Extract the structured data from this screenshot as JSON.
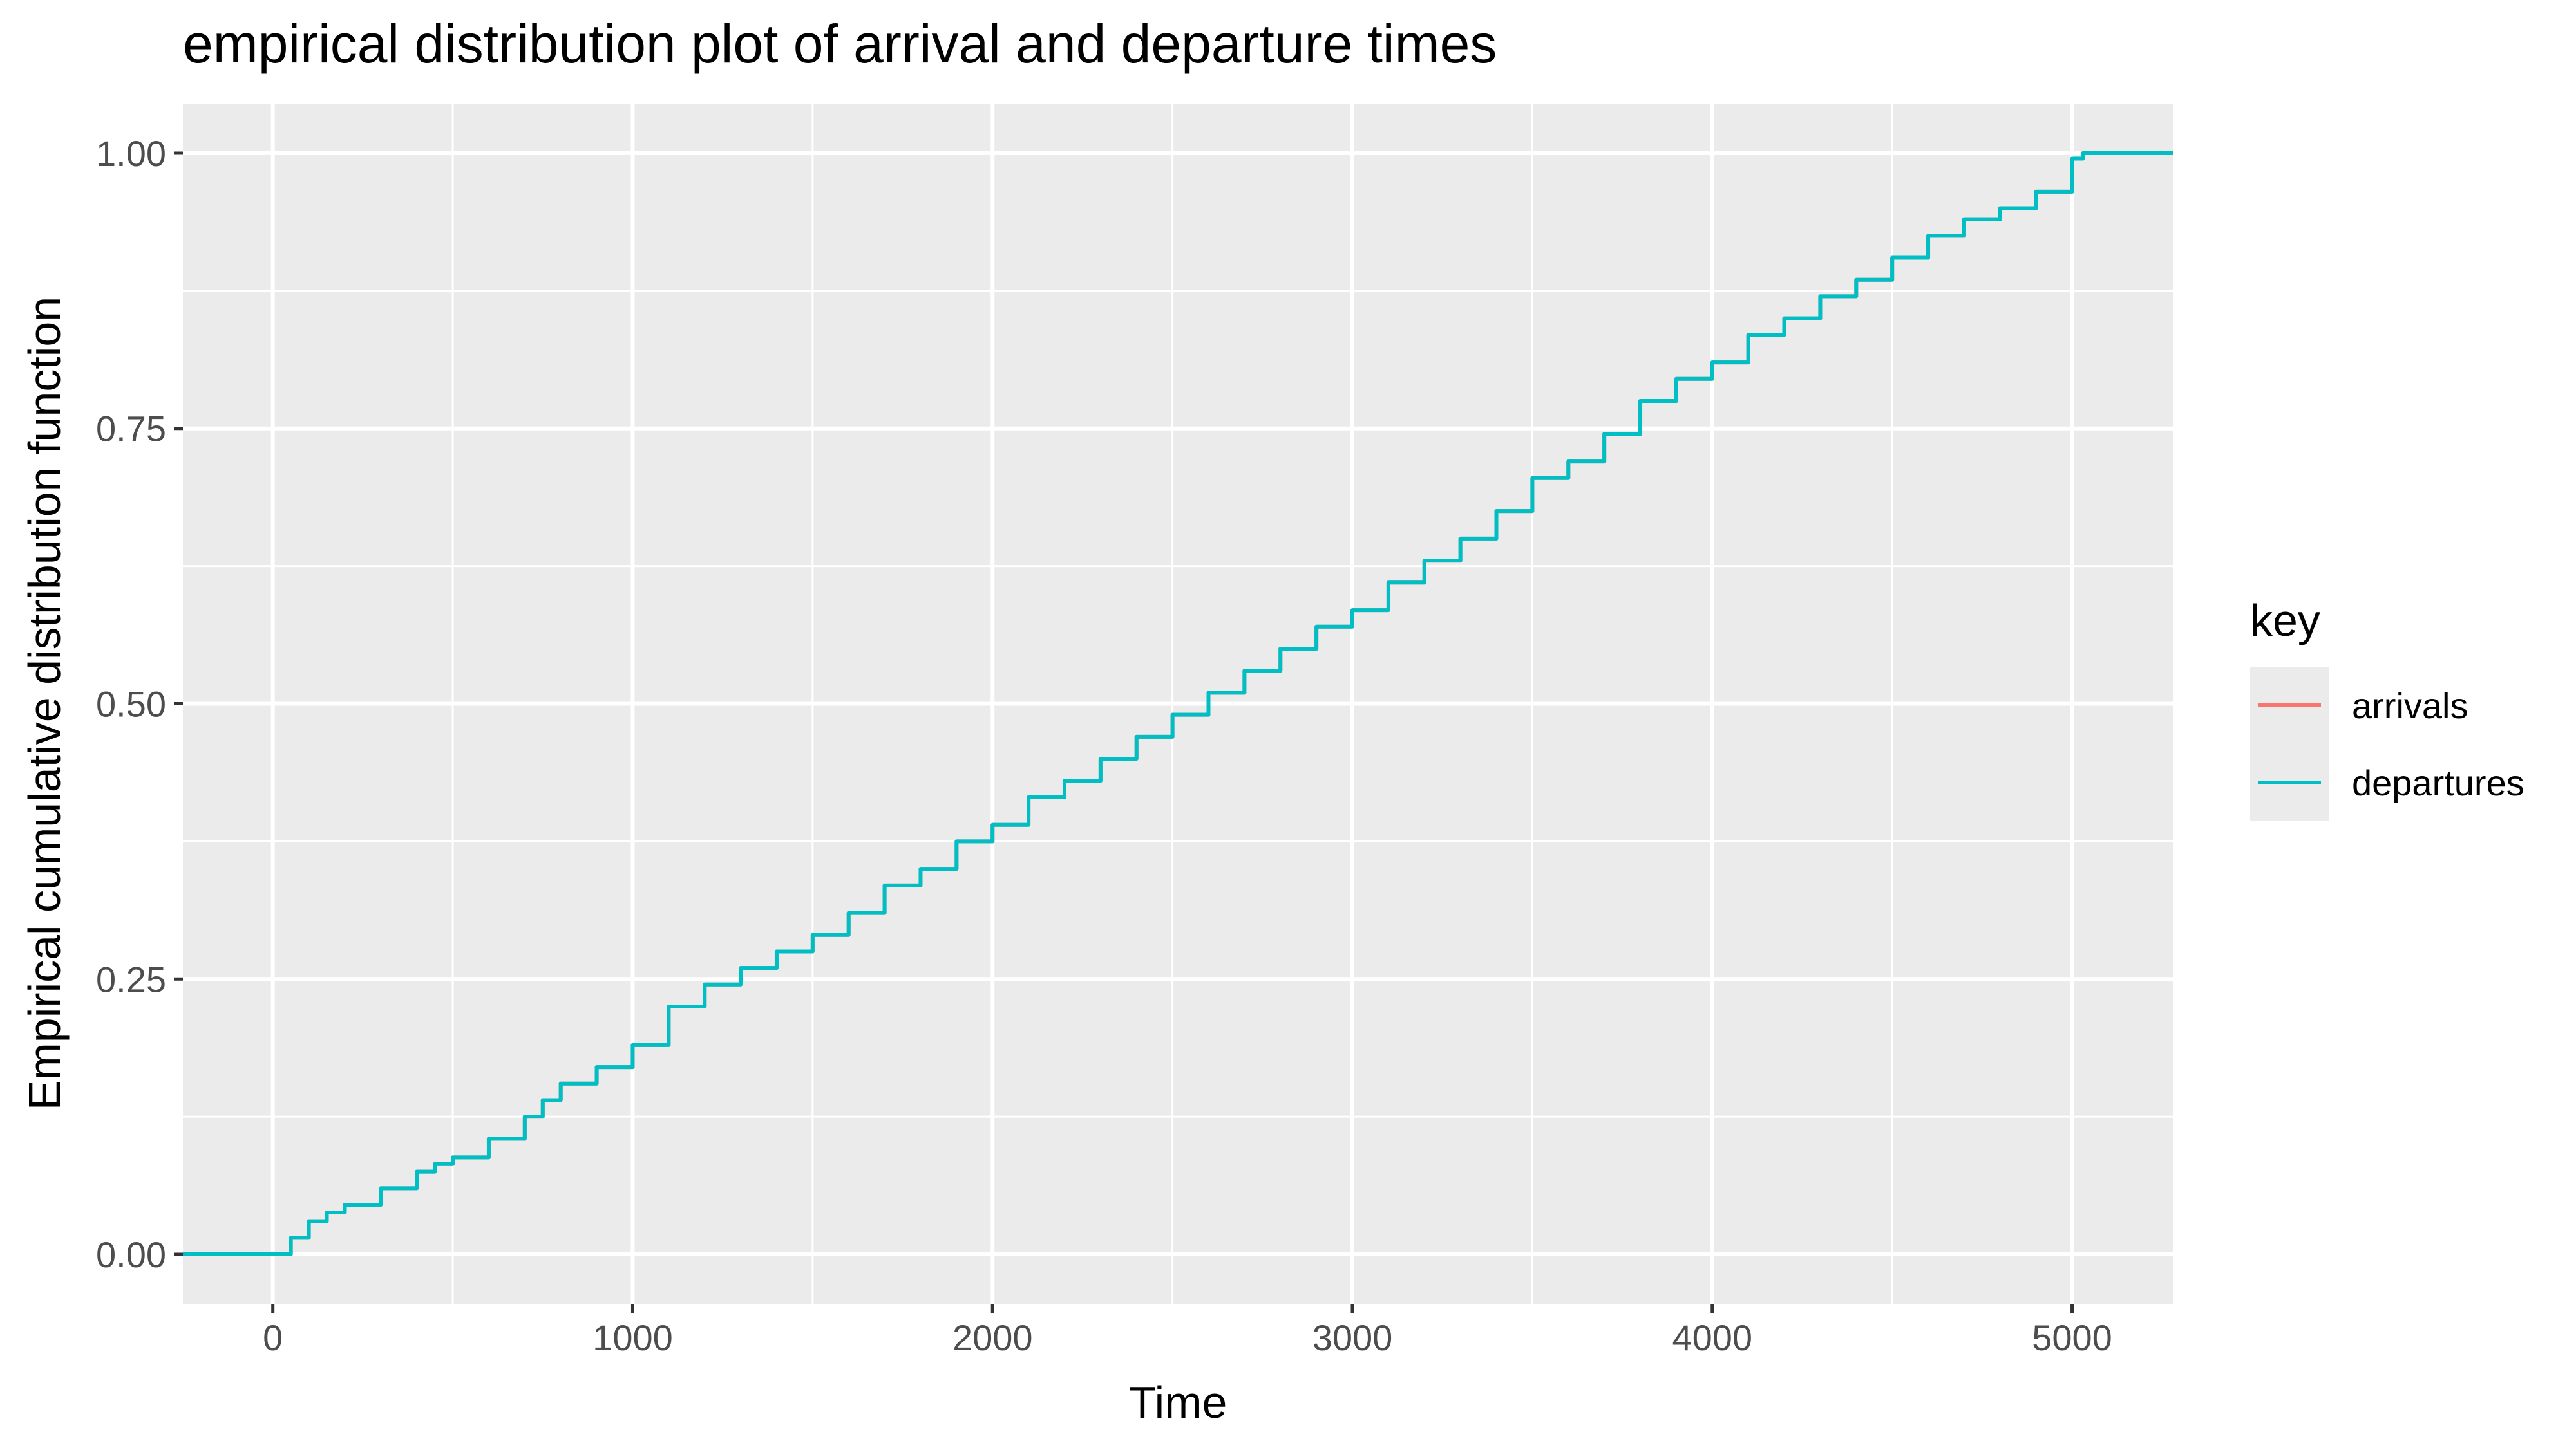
{
  "chart_data": {
    "type": "line",
    "title": "empirical distribution plot of arrival and departure times",
    "xlabel": "Time",
    "ylabel": "Empirical cumulative distribution function",
    "xlim": [
      -250,
      5280
    ],
    "ylim": [
      -0.045,
      1.045
    ],
    "x_ticks": [
      0,
      1000,
      2000,
      3000,
      4000,
      5000
    ],
    "x_tick_labels": [
      "0",
      "1000",
      "2000",
      "3000",
      "4000",
      "5000"
    ],
    "y_ticks": [
      0,
      0.25,
      0.5,
      0.75,
      1
    ],
    "y_tick_labels": [
      "0.00",
      "0.25",
      "0.50",
      "0.75",
      "1.00"
    ],
    "grid": true,
    "legend": {
      "title": "key",
      "placement": "right",
      "entries": [
        "arrivals",
        "departures"
      ]
    },
    "series": [
      {
        "name": "arrivals",
        "color": "#F8766D",
        "x": [
          -250,
          20,
          50,
          100,
          150,
          200,
          300,
          400,
          450,
          500,
          600,
          700,
          750,
          800,
          900,
          1000,
          1100,
          1200,
          1300,
          1400,
          1500,
          1600,
          1700,
          1800,
          1900,
          2000,
          2100,
          2200,
          2300,
          2400,
          2500,
          2600,
          2700,
          2800,
          2900,
          3000,
          3100,
          3200,
          3300,
          3400,
          3500,
          3600,
          3700,
          3800,
          3900,
          4000,
          4100,
          4200,
          4300,
          4400,
          4500,
          4600,
          4700,
          4800,
          4900,
          5000,
          5030,
          5280
        ],
        "y": [
          0,
          0,
          0.015,
          0.03,
          0.038,
          0.045,
          0.06,
          0.075,
          0.082,
          0.088,
          0.105,
          0.125,
          0.14,
          0.155,
          0.17,
          0.19,
          0.225,
          0.245,
          0.26,
          0.275,
          0.29,
          0.31,
          0.335,
          0.35,
          0.375,
          0.39,
          0.415,
          0.43,
          0.45,
          0.47,
          0.49,
          0.51,
          0.53,
          0.55,
          0.57,
          0.585,
          0.61,
          0.63,
          0.65,
          0.675,
          0.705,
          0.72,
          0.745,
          0.775,
          0.795,
          0.81,
          0.835,
          0.85,
          0.87,
          0.885,
          0.905,
          0.925,
          0.94,
          0.95,
          0.965,
          0.995,
          1,
          1
        ]
      },
      {
        "name": "departures",
        "color": "#00BFC4",
        "x": [
          -250,
          20,
          50,
          100,
          150,
          200,
          300,
          400,
          450,
          500,
          600,
          700,
          750,
          800,
          900,
          1000,
          1100,
          1200,
          1300,
          1400,
          1500,
          1600,
          1700,
          1800,
          1900,
          2000,
          2100,
          2200,
          2300,
          2400,
          2500,
          2600,
          2700,
          2800,
          2900,
          3000,
          3100,
          3200,
          3300,
          3400,
          3500,
          3600,
          3700,
          3800,
          3900,
          4000,
          4100,
          4200,
          4300,
          4400,
          4500,
          4600,
          4700,
          4800,
          4900,
          5000,
          5030,
          5280
        ],
        "y": [
          0,
          0,
          0.015,
          0.03,
          0.038,
          0.045,
          0.06,
          0.075,
          0.082,
          0.088,
          0.105,
          0.125,
          0.14,
          0.155,
          0.17,
          0.19,
          0.225,
          0.245,
          0.26,
          0.275,
          0.29,
          0.31,
          0.335,
          0.35,
          0.375,
          0.39,
          0.415,
          0.43,
          0.45,
          0.47,
          0.49,
          0.51,
          0.53,
          0.55,
          0.57,
          0.585,
          0.61,
          0.63,
          0.65,
          0.675,
          0.705,
          0.72,
          0.745,
          0.775,
          0.795,
          0.81,
          0.835,
          0.85,
          0.87,
          0.885,
          0.905,
          0.925,
          0.94,
          0.95,
          0.965,
          0.995,
          1,
          1
        ]
      }
    ]
  }
}
